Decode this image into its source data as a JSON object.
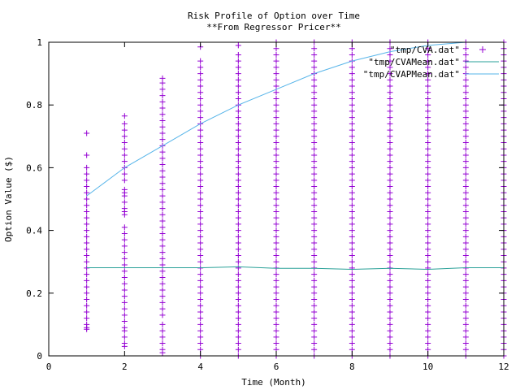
{
  "chart_data": {
    "type": "scatter",
    "title": "Risk Profile of Option over Time",
    "subtitle": "**From Regressor Pricer**",
    "xlabel": "Time (Month)",
    "ylabel": "Option Value ($)",
    "xlim": [
      0,
      12
    ],
    "ylim": [
      0,
      1
    ],
    "x_ticks": [
      0,
      2,
      4,
      6,
      8,
      10,
      12
    ],
    "y_ticks": [
      0,
      0.2,
      0.4,
      0.6,
      0.8,
      1
    ],
    "grid": false,
    "legend_position": "top-right",
    "colors": {
      "scatter": "#9400d3",
      "mean": "#2aa198",
      "pmean": "#56b4e9"
    },
    "series": [
      {
        "name": "\"tmp/CVA.dat\"",
        "style": "points",
        "marker": "plus",
        "color": "#9400d3",
        "points_by_month": [
          {
            "x": 1,
            "y": [
              0.085,
              0.09,
              0.1,
              0.12,
              0.14,
              0.16,
              0.18,
              0.2,
              0.22,
              0.24,
              0.26,
              0.28,
              0.3,
              0.32,
              0.34,
              0.36,
              0.38,
              0.4,
              0.42,
              0.44,
              0.46,
              0.48,
              0.5,
              0.52,
              0.54,
              0.56,
              0.58,
              0.6,
              0.64,
              0.71
            ]
          },
          {
            "x": 2,
            "y": [
              0.03,
              0.04,
              0.06,
              0.08,
              0.09,
              0.11,
              0.13,
              0.15,
              0.17,
              0.19,
              0.21,
              0.23,
              0.25,
              0.27,
              0.29,
              0.31,
              0.33,
              0.35,
              0.37,
              0.39,
              0.41,
              0.45,
              0.46,
              0.47,
              0.49,
              0.51,
              0.52,
              0.53,
              0.56,
              0.58,
              0.6,
              0.62,
              0.64,
              0.66,
              0.68,
              0.7,
              0.72,
              0.74,
              0.765
            ]
          },
          {
            "x": 3,
            "y": [
              0.01,
              0.02,
              0.04,
              0.06,
              0.08,
              0.1,
              0.13,
              0.15,
              0.17,
              0.19,
              0.21,
              0.23,
              0.25,
              0.27,
              0.29,
              0.31,
              0.33,
              0.35,
              0.37,
              0.39,
              0.41,
              0.43,
              0.45,
              0.47,
              0.49,
              0.51,
              0.53,
              0.55,
              0.57,
              0.59,
              0.61,
              0.63,
              0.65,
              0.67,
              0.69,
              0.71,
              0.73,
              0.75,
              0.77,
              0.79,
              0.81,
              0.83,
              0.85,
              0.87,
              0.885
            ]
          },
          {
            "x": 4,
            "y": [
              0.0,
              0.02,
              0.04,
              0.06,
              0.08,
              0.1,
              0.12,
              0.14,
              0.16,
              0.18,
              0.2,
              0.22,
              0.24,
              0.26,
              0.28,
              0.3,
              0.32,
              0.34,
              0.36,
              0.38,
              0.4,
              0.42,
              0.44,
              0.46,
              0.48,
              0.5,
              0.52,
              0.54,
              0.56,
              0.58,
              0.6,
              0.62,
              0.64,
              0.66,
              0.68,
              0.7,
              0.72,
              0.74,
              0.76,
              0.78,
              0.8,
              0.82,
              0.84,
              0.86,
              0.88,
              0.9,
              0.92,
              0.94,
              0.985
            ]
          },
          {
            "x": 5,
            "y": [
              0.0,
              0.02,
              0.04,
              0.06,
              0.08,
              0.1,
              0.12,
              0.14,
              0.16,
              0.18,
              0.2,
              0.22,
              0.24,
              0.26,
              0.28,
              0.3,
              0.32,
              0.34,
              0.36,
              0.38,
              0.4,
              0.42,
              0.44,
              0.46,
              0.48,
              0.5,
              0.52,
              0.54,
              0.56,
              0.58,
              0.6,
              0.62,
              0.64,
              0.66,
              0.68,
              0.7,
              0.72,
              0.74,
              0.76,
              0.78,
              0.8,
              0.82,
              0.84,
              0.86,
              0.88,
              0.9,
              0.92,
              0.94,
              0.96,
              0.99
            ]
          },
          {
            "x": 6,
            "y": [
              0.0,
              0.02,
              0.04,
              0.06,
              0.08,
              0.1,
              0.12,
              0.14,
              0.16,
              0.18,
              0.2,
              0.22,
              0.24,
              0.26,
              0.28,
              0.3,
              0.32,
              0.34,
              0.36,
              0.38,
              0.4,
              0.42,
              0.44,
              0.46,
              0.48,
              0.5,
              0.52,
              0.54,
              0.56,
              0.58,
              0.6,
              0.62,
              0.64,
              0.66,
              0.68,
              0.7,
              0.72,
              0.74,
              0.76,
              0.78,
              0.8,
              0.82,
              0.84,
              0.86,
              0.88,
              0.9,
              0.92,
              0.94,
              0.96,
              0.98,
              1.0
            ]
          },
          {
            "x": 7,
            "y": [
              0.0,
              0.02,
              0.04,
              0.06,
              0.08,
              0.1,
              0.12,
              0.14,
              0.16,
              0.18,
              0.2,
              0.22,
              0.24,
              0.26,
              0.28,
              0.3,
              0.32,
              0.34,
              0.36,
              0.38,
              0.4,
              0.42,
              0.44,
              0.46,
              0.48,
              0.5,
              0.52,
              0.54,
              0.56,
              0.58,
              0.6,
              0.62,
              0.64,
              0.66,
              0.68,
              0.7,
              0.72,
              0.74,
              0.76,
              0.78,
              0.8,
              0.82,
              0.84,
              0.86,
              0.88,
              0.9,
              0.92,
              0.94,
              0.96,
              0.98,
              1.0
            ]
          },
          {
            "x": 8,
            "y": [
              0.0,
              0.02,
              0.04,
              0.06,
              0.08,
              0.1,
              0.12,
              0.14,
              0.16,
              0.18,
              0.2,
              0.22,
              0.24,
              0.26,
              0.28,
              0.3,
              0.32,
              0.34,
              0.36,
              0.38,
              0.4,
              0.42,
              0.44,
              0.46,
              0.48,
              0.5,
              0.52,
              0.54,
              0.56,
              0.58,
              0.6,
              0.62,
              0.64,
              0.66,
              0.68,
              0.7,
              0.72,
              0.74,
              0.76,
              0.78,
              0.8,
              0.82,
              0.84,
              0.86,
              0.88,
              0.9,
              0.92,
              0.94,
              0.96,
              0.98,
              1.0
            ]
          },
          {
            "x": 9,
            "y": [
              0.0,
              0.02,
              0.04,
              0.06,
              0.08,
              0.1,
              0.12,
              0.14,
              0.16,
              0.18,
              0.2,
              0.22,
              0.24,
              0.26,
              0.28,
              0.3,
              0.32,
              0.34,
              0.36,
              0.38,
              0.4,
              0.42,
              0.44,
              0.46,
              0.48,
              0.5,
              0.52,
              0.54,
              0.56,
              0.58,
              0.6,
              0.62,
              0.64,
              0.66,
              0.68,
              0.7,
              0.72,
              0.74,
              0.76,
              0.78,
              0.8,
              0.82,
              0.84,
              0.86,
              0.88,
              0.9,
              0.92,
              0.94,
              0.96,
              0.98,
              1.0
            ]
          },
          {
            "x": 10,
            "y": [
              0.0,
              0.02,
              0.04,
              0.06,
              0.08,
              0.1,
              0.12,
              0.14,
              0.16,
              0.18,
              0.2,
              0.22,
              0.24,
              0.26,
              0.28,
              0.3,
              0.32,
              0.34,
              0.36,
              0.38,
              0.4,
              0.42,
              0.44,
              0.46,
              0.48,
              0.5,
              0.52,
              0.54,
              0.56,
              0.58,
              0.6,
              0.62,
              0.64,
              0.66,
              0.68,
              0.7,
              0.72,
              0.74,
              0.76,
              0.78,
              0.8,
              0.82,
              0.84,
              0.86,
              0.88,
              0.9,
              0.92,
              0.94,
              0.96,
              0.98,
              1.0
            ]
          },
          {
            "x": 11,
            "y": [
              0.0,
              0.02,
              0.04,
              0.06,
              0.08,
              0.1,
              0.12,
              0.14,
              0.16,
              0.18,
              0.2,
              0.22,
              0.24,
              0.26,
              0.28,
              0.3,
              0.32,
              0.34,
              0.36,
              0.38,
              0.4,
              0.42,
              0.44,
              0.46,
              0.48,
              0.5,
              0.52,
              0.54,
              0.56,
              0.58,
              0.6,
              0.62,
              0.64,
              0.66,
              0.68,
              0.7,
              0.72,
              0.74,
              0.76,
              0.78,
              0.8,
              0.82,
              0.84,
              0.86,
              0.88,
              0.9,
              0.92,
              0.94,
              0.96,
              0.98,
              1.0
            ]
          },
          {
            "x": 12,
            "y": [
              0.0,
              0.02,
              0.04,
              0.06,
              0.08,
              0.1,
              0.12,
              0.14,
              0.16,
              0.18,
              0.2,
              0.22,
              0.24,
              0.26,
              0.28,
              0.3,
              0.32,
              0.34,
              0.36,
              0.38,
              0.4,
              0.42,
              0.44,
              0.46,
              0.48,
              0.5,
              0.52,
              0.54,
              0.56,
              0.58,
              0.6,
              0.62,
              0.64,
              0.66,
              0.68,
              0.7,
              0.72,
              0.74,
              0.76,
              0.78,
              0.8,
              0.82,
              0.84,
              0.86,
              0.88,
              0.9,
              0.92,
              0.94,
              0.96,
              0.98,
              1.0
            ]
          }
        ]
      },
      {
        "name": "\"tmp/CVAMean.dat\"",
        "style": "line",
        "color": "#2aa198",
        "x": [
          1,
          2,
          3,
          4,
          5,
          6,
          7,
          8,
          9,
          10,
          11,
          12
        ],
        "values": [
          0.281,
          0.281,
          0.281,
          0.281,
          0.284,
          0.279,
          0.279,
          0.276,
          0.279,
          0.276,
          0.281,
          0.281
        ]
      },
      {
        "name": "\"tmp/CVAPMean.dat\"",
        "style": "line",
        "color": "#56b4e9",
        "x": [
          1,
          2,
          3,
          4,
          5,
          6,
          7,
          8,
          9,
          10,
          11,
          12
        ],
        "values": [
          0.51,
          0.6,
          0.67,
          0.74,
          0.8,
          0.85,
          0.9,
          0.94,
          0.97,
          0.99,
          1.0,
          1.0
        ]
      }
    ]
  }
}
